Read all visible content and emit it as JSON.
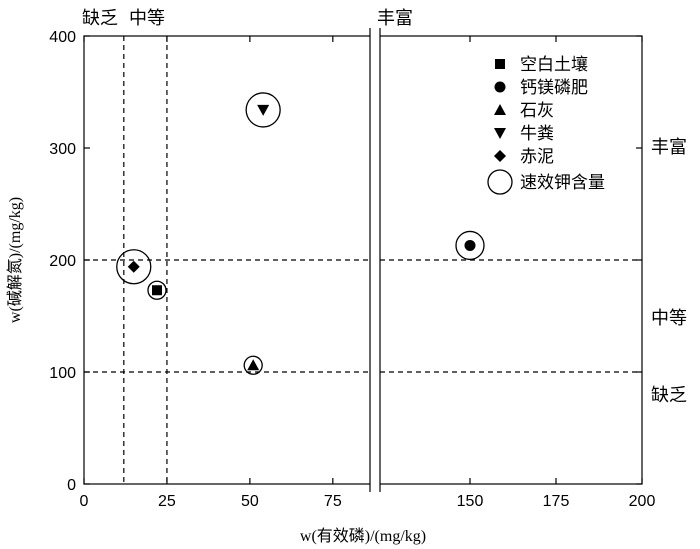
{
  "chart_data": {
    "type": "scatter",
    "title": "",
    "xlabel": "w(有效磷)/(mg/kg)",
    "ylabel": "w(碱解氮)/(mg/kg)",
    "ylim": [
      0,
      400
    ],
    "y_ticks": [
      "0",
      "100",
      "200",
      "300",
      "400"
    ],
    "x_axis": {
      "broken": true,
      "segment1": {
        "range": [
          0,
          85
        ],
        "ticks": [
          0,
          25,
          50,
          75
        ],
        "tick_labels": [
          "0",
          "25",
          "50",
          "75"
        ]
      },
      "segment2": {
        "range": [
          125,
          200
        ],
        "ticks": [
          150,
          175,
          200
        ],
        "tick_labels": [
          "150",
          "175",
          "200"
        ]
      }
    },
    "reference_lines": {
      "x": [
        12,
        25
      ],
      "y": [
        100,
        200
      ]
    },
    "region_labels": {
      "top_deficient": "缺乏",
      "top_medium": "中等",
      "top_rich": "丰富",
      "right_rich": "丰富",
      "right_medium": "中等",
      "right_deficient": "缺乏"
    },
    "series": [
      {
        "name": "空白土壤",
        "marker": "square",
        "x": 22,
        "y": 173,
        "ring_size": "small"
      },
      {
        "name": "钙镁磷肥",
        "marker": "circle",
        "x": 150,
        "y": 213,
        "ring_size": "medium"
      },
      {
        "name": "石灰",
        "marker": "triangle-up",
        "x": 51,
        "y": 106,
        "ring_size": "small"
      },
      {
        "name": "牛粪",
        "marker": "triangle-down",
        "x": 54,
        "y": 334,
        "ring_size": "large"
      },
      {
        "name": "赤泥",
        "marker": "diamond",
        "x": 15,
        "y": 194,
        "ring_size": "large"
      }
    ],
    "ring_legend": "速效钾含量",
    "legend_position": "top-right"
  }
}
